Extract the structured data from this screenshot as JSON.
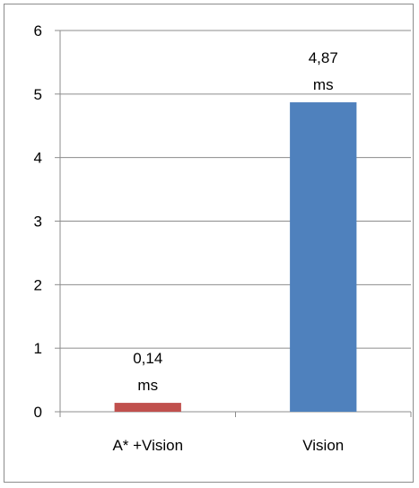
{
  "chart_data": {
    "type": "bar",
    "categories": [
      "A* +Vision",
      "Vision"
    ],
    "values": [
      0.14,
      4.87
    ],
    "data_labels": [
      [
        "0,14",
        "ms"
      ],
      [
        "4,87",
        "ms"
      ]
    ],
    "bar_colors": [
      "#c0504d",
      "#4f81bd"
    ],
    "ylim": [
      0,
      6
    ],
    "yticks": [
      0,
      1,
      2,
      3,
      4,
      5,
      6
    ],
    "ytick_labels": [
      "0",
      "1",
      "2",
      "3",
      "4",
      "5",
      "6"
    ],
    "grid": true,
    "legend": "none"
  }
}
